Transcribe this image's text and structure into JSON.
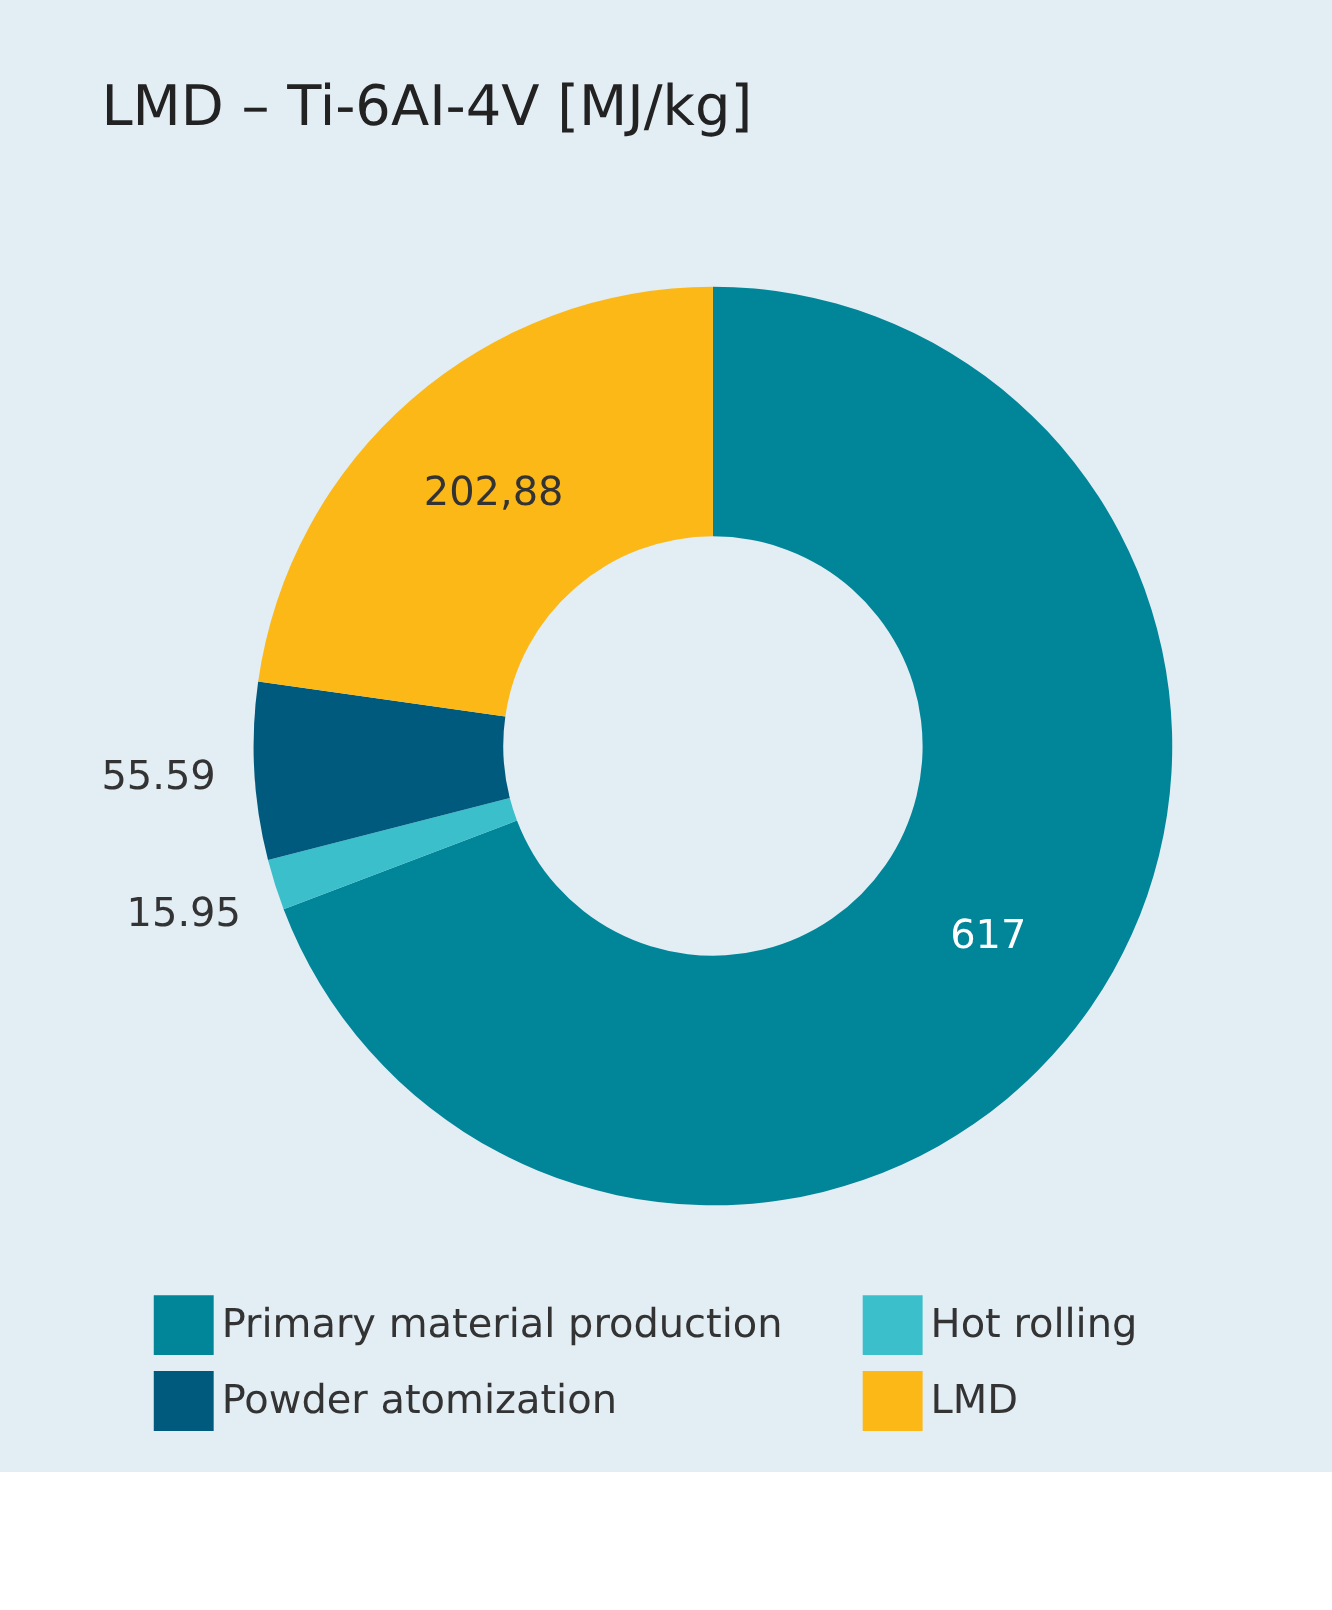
{
  "chart_data": {
    "type": "donut",
    "title": "LMD – Ti-6AI-4V [MJ/kg]",
    "categories": [
      "Primary material production",
      "Hot rolling",
      "Powder atomization",
      "LMD"
    ],
    "values": [
      617,
      15.95,
      55.59,
      202.88
    ],
    "value_labels": [
      "617",
      "15.95",
      "55.59",
      "202,88"
    ],
    "colors": [
      "#008599",
      "#3bbfcb",
      "#005a7d",
      "#fbb817"
    ],
    "legend": "bottom"
  }
}
